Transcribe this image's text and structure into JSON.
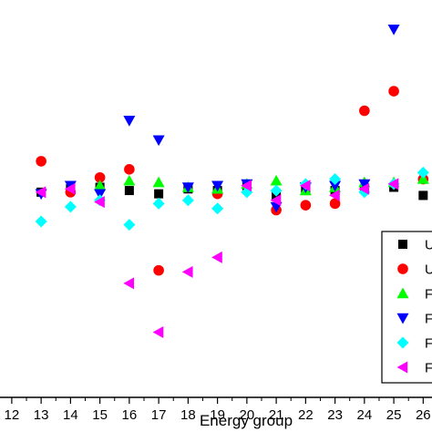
{
  "chart_data": {
    "type": "scatter",
    "title": "",
    "xlabel": "Energy group",
    "ylabel": "",
    "xlim": [
      11.6,
      26.3
    ],
    "ylim": [
      -6.3,
      5.9
    ],
    "x_ticks": [
      12,
      13,
      14,
      15,
      16,
      17,
      18,
      19,
      20,
      21,
      22,
      23,
      24,
      25,
      26
    ],
    "tick_labels": [
      "12",
      "13",
      "14",
      "15",
      "16",
      "17",
      "18",
      "19",
      "20",
      "21",
      "22",
      "23",
      "24",
      "25",
      "26"
    ],
    "grid": false,
    "legend_position": "bottom-right",
    "series": [
      {
        "name": "U",
        "marker": "square",
        "color": "#000000",
        "x": [
          13,
          14,
          15,
          16,
          17,
          18,
          19,
          20,
          21,
          22,
          23,
          24,
          25,
          26
        ],
        "y": [
          0.0,
          0.1,
          0.15,
          0.05,
          -0.05,
          0.1,
          0.05,
          0.2,
          -0.1,
          0.1,
          0.05,
          0.1,
          0.15,
          -0.1
        ]
      },
      {
        "name": "U",
        "marker": "circle",
        "color": "#ff0000",
        "x": [
          13,
          14,
          15,
          16,
          17,
          19,
          21,
          22,
          23,
          24,
          25,
          26
        ],
        "y": [
          0.95,
          0.0,
          0.45,
          0.7,
          -2.4,
          -0.05,
          -0.55,
          -0.4,
          -0.35,
          2.5,
          3.1,
          0.4
        ]
      },
      {
        "name": "F",
        "marker": "triangle-up",
        "color": "#00ff00",
        "x": [
          15,
          16,
          17,
          18,
          19,
          20,
          21,
          22,
          23,
          24,
          25,
          26
        ],
        "y": [
          0.2,
          0.35,
          0.3,
          0.15,
          0.1,
          0.25,
          0.35,
          0.05,
          0.15,
          0.3,
          0.3,
          0.4
        ]
      },
      {
        "name": "F",
        "marker": "triangle-down",
        "color": "#0000ff",
        "x": [
          13,
          14,
          15,
          16,
          17,
          18,
          19,
          20,
          21,
          22,
          23,
          24,
          25
        ],
        "y": [
          -0.05,
          0.2,
          -0.05,
          2.2,
          1.6,
          0.15,
          0.2,
          0.25,
          -0.45,
          0.15,
          0.2,
          0.25,
          5.0
        ]
      },
      {
        "name": "F",
        "marker": "diamond",
        "color": "#00ffff",
        "x": [
          13,
          14,
          15,
          16,
          17,
          18,
          19,
          20,
          21,
          22,
          23,
          24,
          25,
          26
        ],
        "y": [
          -0.9,
          -0.45,
          -0.25,
          -1.0,
          -0.35,
          -0.25,
          -0.5,
          0.0,
          0.05,
          0.25,
          0.4,
          0.0,
          0.25,
          0.6
        ]
      },
      {
        "name": "F",
        "marker": "triangle-left",
        "color": "#ff00ff",
        "x": [
          13,
          14,
          15,
          16,
          17,
          18,
          19,
          20,
          21,
          22,
          23,
          24,
          25
        ],
        "y": [
          0.0,
          0.1,
          -0.3,
          -2.8,
          -4.3,
          -2.45,
          -2.0,
          0.2,
          -0.25,
          0.2,
          -0.1,
          0.1,
          0.25
        ]
      }
    ]
  }
}
